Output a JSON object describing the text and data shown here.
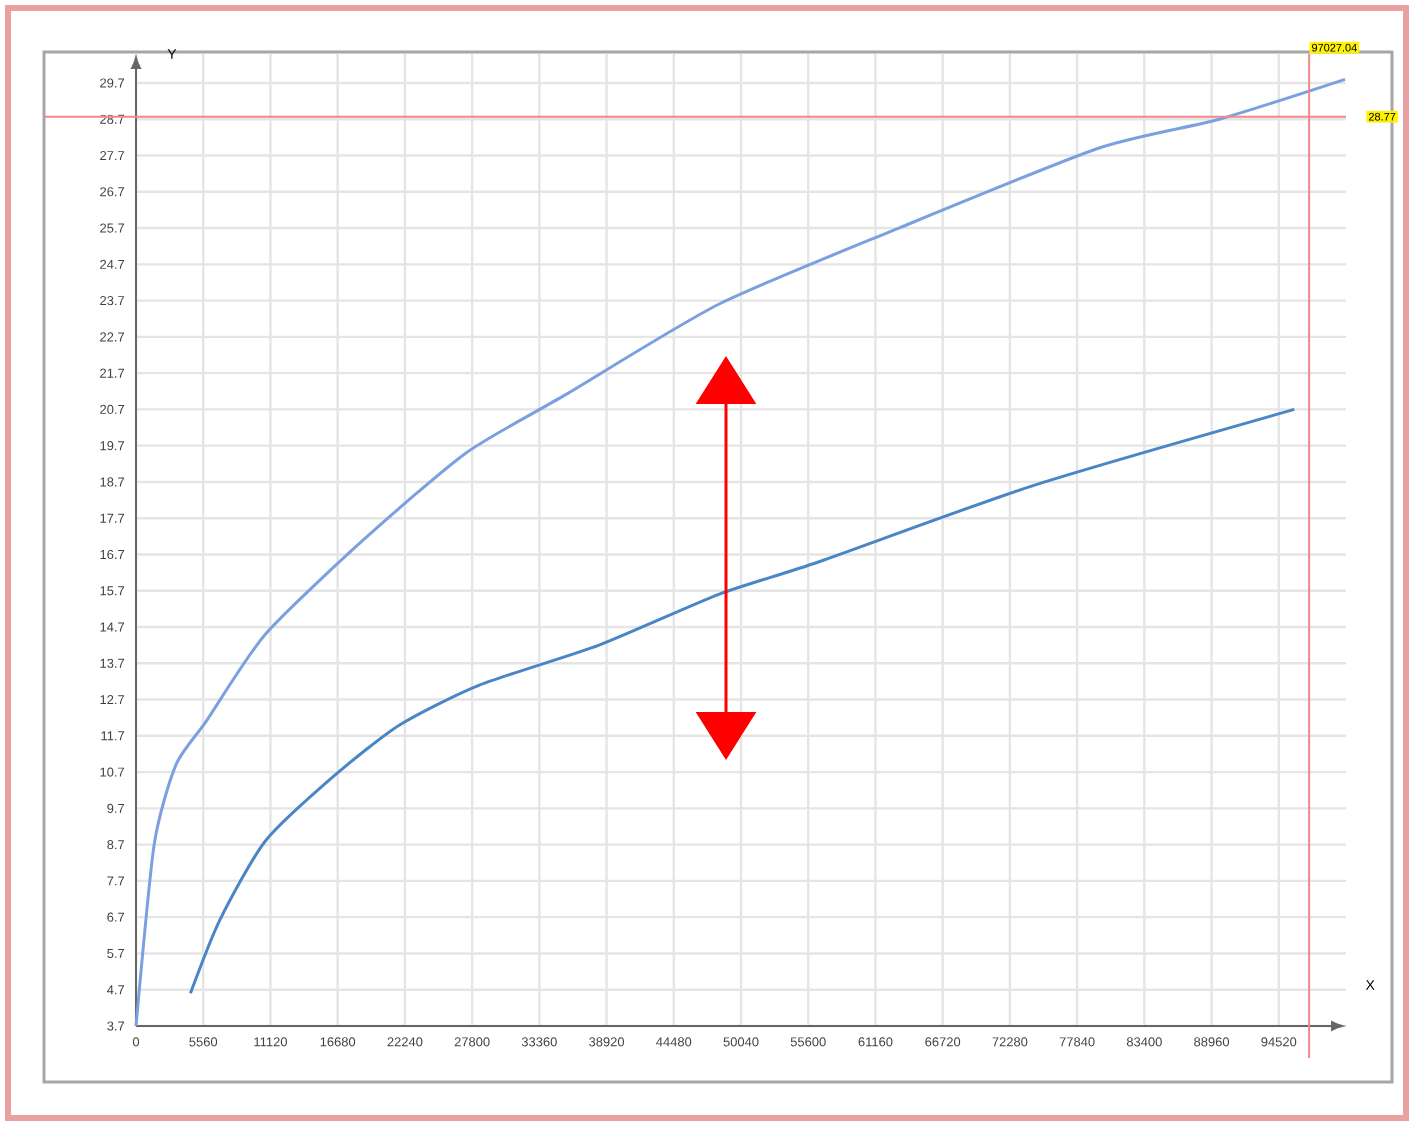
{
  "chart_data": {
    "type": "line",
    "xlabel": "X",
    "ylabel": "Y",
    "xlim": [
      0,
      100080
    ],
    "ylim": [
      3.7,
      30.5
    ],
    "xticks": [
      0,
      5560,
      11120,
      16680,
      22240,
      27800,
      33360,
      38920,
      44480,
      50040,
      55600,
      61160,
      66720,
      72280,
      77840,
      83400,
      88960,
      94520
    ],
    "yticks": [
      3.7,
      4.7,
      5.7,
      6.7,
      7.7,
      8.7,
      9.7,
      10.7,
      11.7,
      12.7,
      13.7,
      14.7,
      15.7,
      16.7,
      17.7,
      18.7,
      19.7,
      20.7,
      21.7,
      22.7,
      23.7,
      24.7,
      25.7,
      26.7,
      27.7,
      28.7,
      29.7
    ],
    "grid": true,
    "series": [
      {
        "color": "#7ba0e0",
        "x": [
          0,
          1500,
          3300,
          5800,
          10700,
          18800,
          27300,
          35500,
          48200,
          63100,
          79600,
          89600,
          100000
        ],
        "values": [
          3.7,
          8.7,
          10.9,
          12.1,
          14.5,
          17.1,
          19.5,
          21.1,
          23.6,
          25.7,
          27.9,
          28.7,
          29.8
        ]
      },
      {
        "color": "#4a86c5",
        "x": [
          4500,
          6900,
          10700,
          16400,
          21800,
          28400,
          38300,
          48200,
          56500,
          74200,
          95800
        ],
        "values": [
          4.6,
          6.6,
          8.8,
          10.6,
          12.0,
          13.1,
          14.2,
          15.6,
          16.5,
          18.6,
          20.7
        ]
      }
    ],
    "ref_lines": [
      {
        "axis": "x",
        "value": 97027.04,
        "label": "97027.04",
        "color": "#f08a8a"
      },
      {
        "axis": "y",
        "value": 28.77,
        "label": "28.77",
        "color": "#f08a8a"
      }
    ]
  }
}
